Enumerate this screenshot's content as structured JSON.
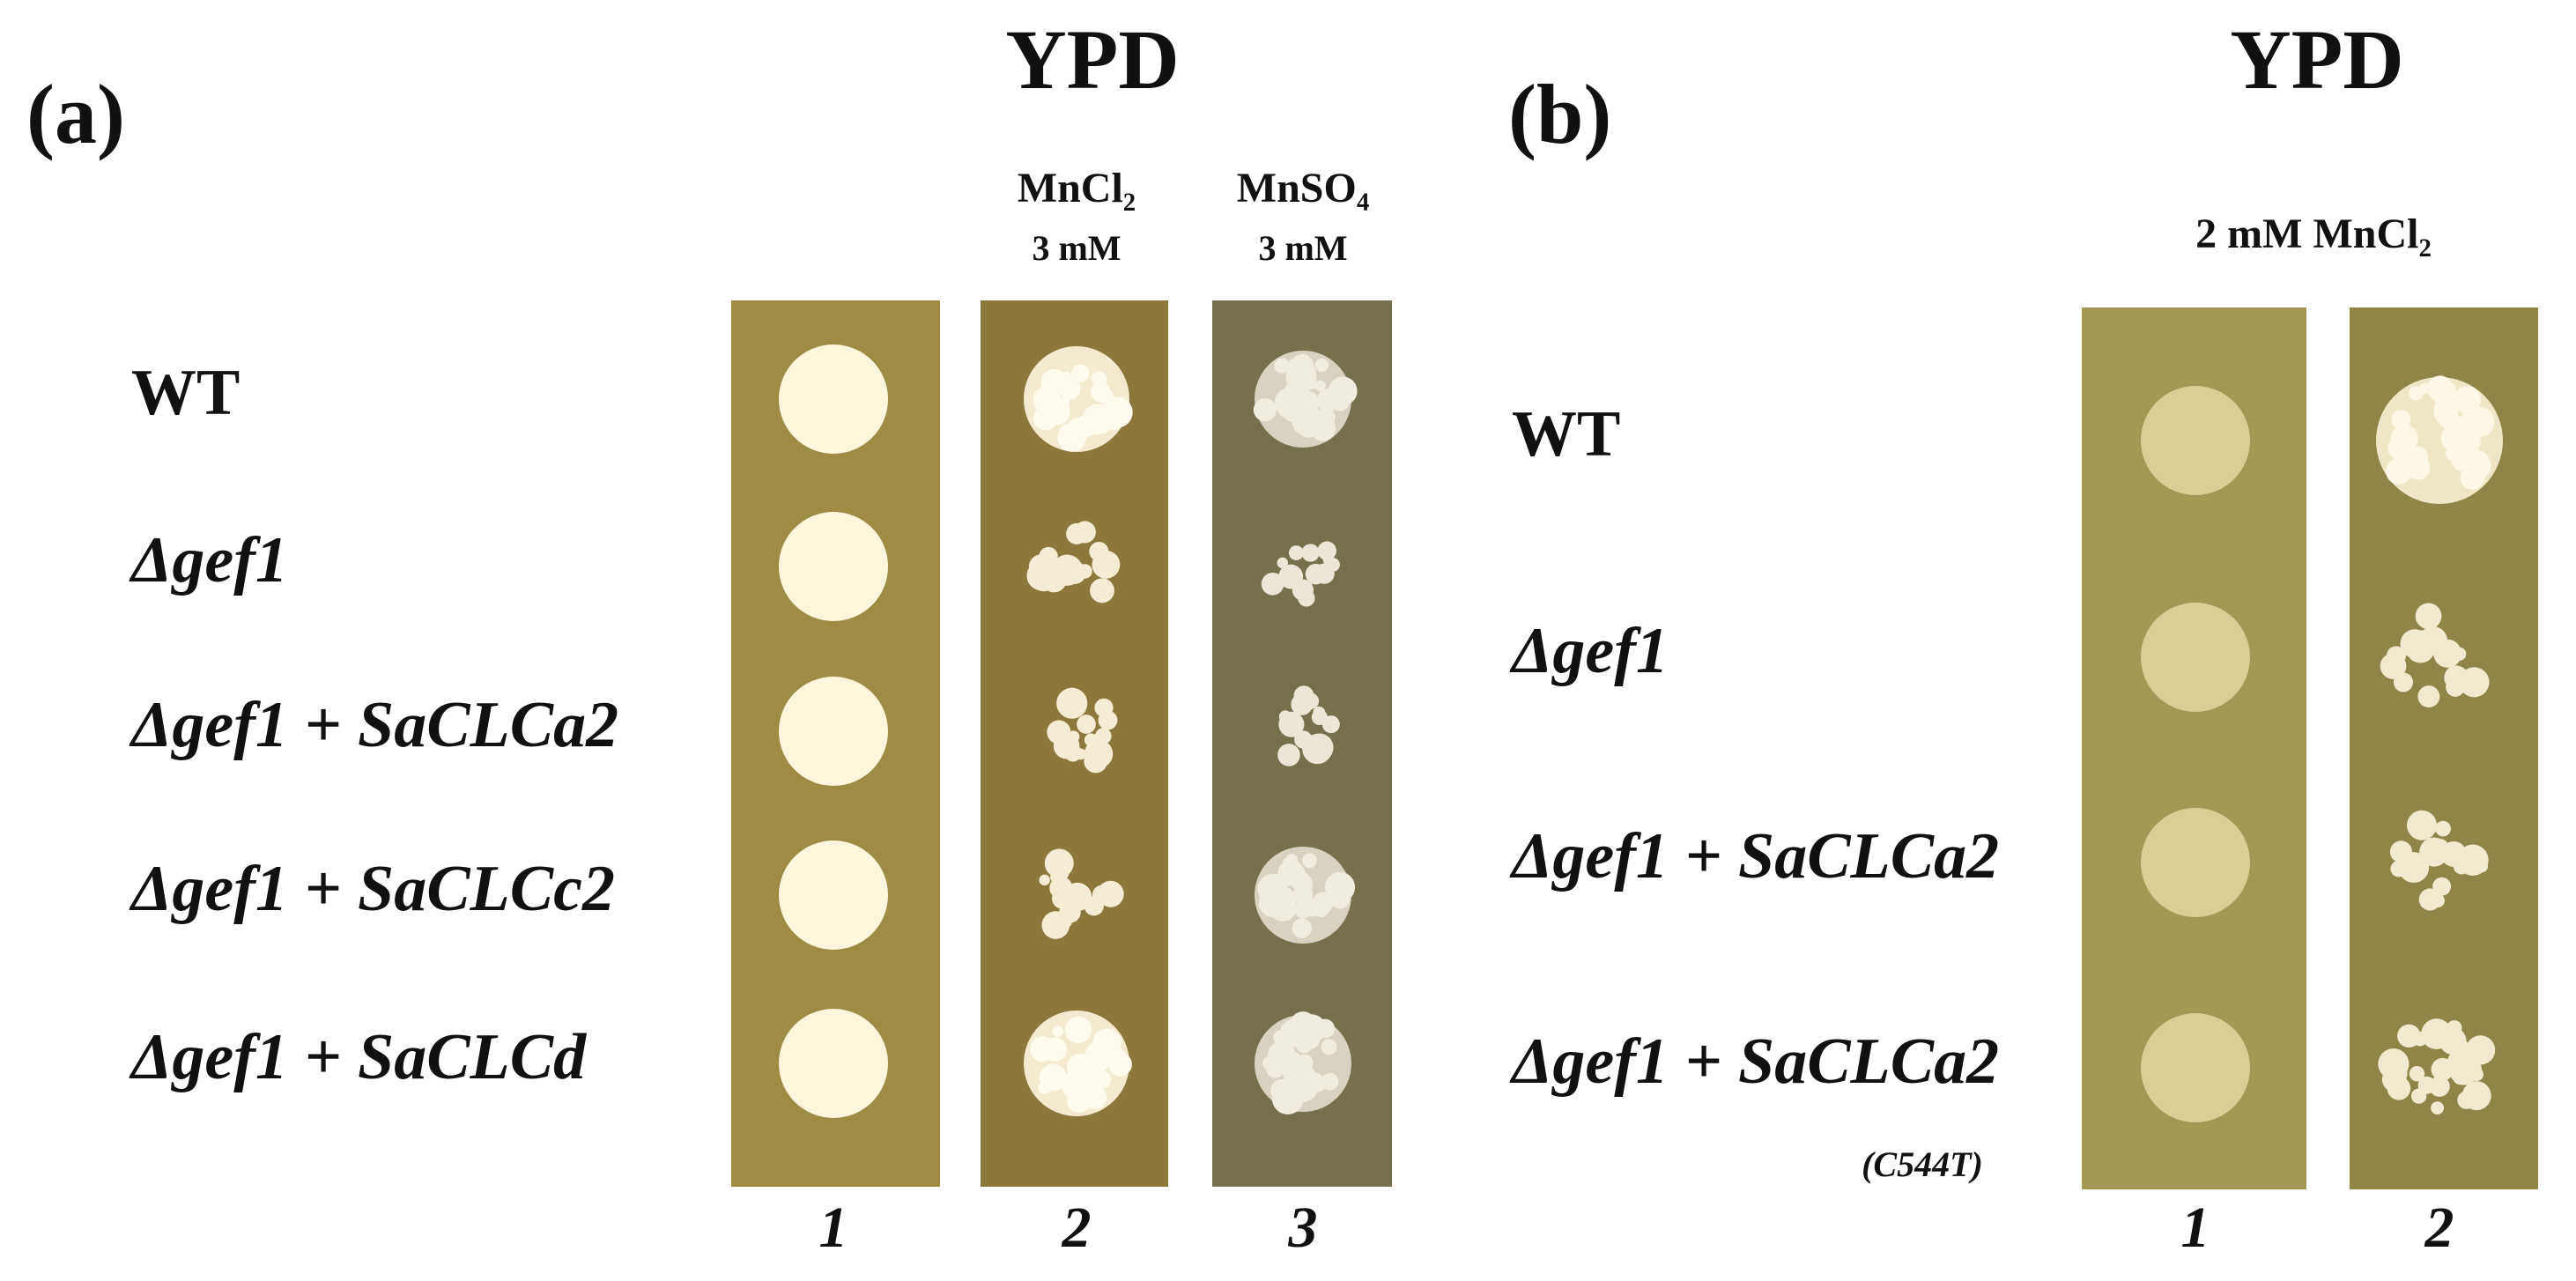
{
  "panel_a": {
    "label": "(a)",
    "title": "YPD",
    "columns": [
      {
        "compound": "MnCl₂",
        "concentration": "3 mM"
      },
      {
        "compound": "MnSO₄",
        "concentration": "3 mM"
      }
    ],
    "rows": [
      "WT",
      "Δgef1",
      "Δgef1 + SaCLCa2",
      "Δgef1 + SaCLCc2",
      "Δgef1 + SaCLCd"
    ],
    "lanes": [
      "1",
      "2",
      "3"
    ]
  },
  "panel_b": {
    "label": "(b)",
    "title": "YPD",
    "condition": "2 mM MnCl₂",
    "rows": [
      "WT",
      "Δgef1",
      "Δgef1 + SaCLCa2",
      "Δgef1 + SaCLCa2"
    ],
    "row_note": "(C544T)",
    "lanes": [
      "1",
      "2"
    ]
  }
}
